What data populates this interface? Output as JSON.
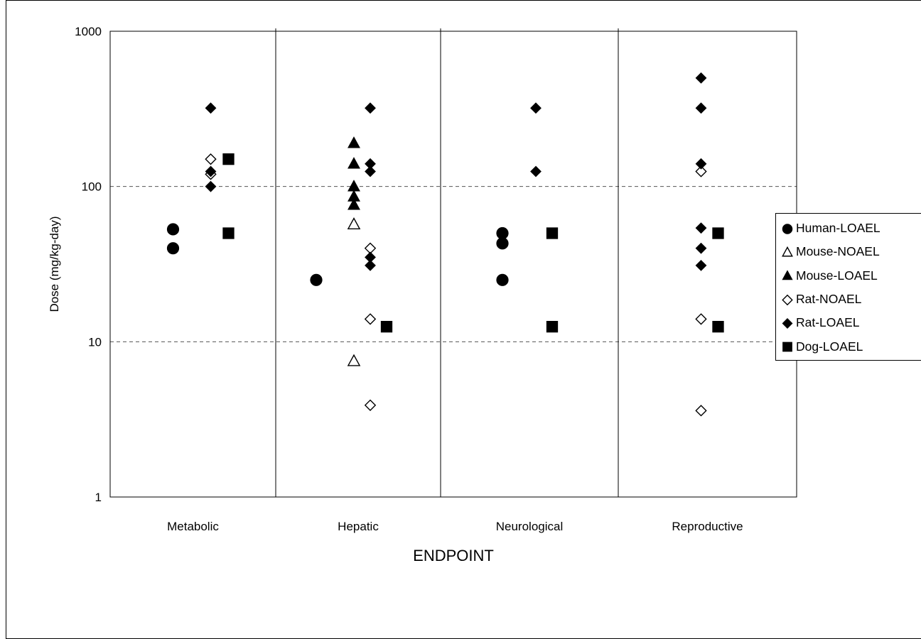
{
  "chart_data": {
    "type": "scatter",
    "title": "",
    "xlabel": "ENDPOINT",
    "ylabel": "Dose (mg/kg-day)",
    "y_scale": "log",
    "ylim": [
      1,
      1000
    ],
    "y_ticks": [
      "1",
      "10",
      "100",
      "1000"
    ],
    "categories": [
      "Metabolic",
      "Hepatic",
      "Neurological",
      "Reproductive"
    ],
    "grid": "horizontal dashed",
    "legend_position": "right",
    "series": [
      {
        "name": "Human-LOAEL",
        "marker": "circle-filled",
        "points": [
          {
            "category": "Metabolic",
            "y": 53
          },
          {
            "category": "Metabolic",
            "y": 40
          },
          {
            "category": "Hepatic",
            "y": 25
          },
          {
            "category": "Neurological",
            "y": 50
          },
          {
            "category": "Neurological",
            "y": 43
          },
          {
            "category": "Neurological",
            "y": 25
          }
        ]
      },
      {
        "name": "Mouse-NOAEL",
        "marker": "triangle-open",
        "points": [
          {
            "category": "Hepatic",
            "y": 57
          },
          {
            "category": "Hepatic",
            "y": 7.5
          }
        ]
      },
      {
        "name": "Mouse-LOAEL",
        "marker": "triangle-filled",
        "points": [
          {
            "category": "Hepatic",
            "y": 190
          },
          {
            "category": "Hepatic",
            "y": 140
          },
          {
            "category": "Hepatic",
            "y": 100
          },
          {
            "category": "Hepatic",
            "y": 86
          },
          {
            "category": "Hepatic",
            "y": 76
          }
        ]
      },
      {
        "name": "Rat-NOAEL",
        "marker": "diamond-open",
        "points": [
          {
            "category": "Metabolic",
            "y": 150
          },
          {
            "category": "Metabolic",
            "y": 120
          },
          {
            "category": "Hepatic",
            "y": 40
          },
          {
            "category": "Hepatic",
            "y": 14
          },
          {
            "category": "Hepatic",
            "y": 3.9
          },
          {
            "category": "Reproductive",
            "y": 125
          },
          {
            "category": "Reproductive",
            "y": 14
          },
          {
            "category": "Reproductive",
            "y": 3.6
          }
        ]
      },
      {
        "name": "Rat-LOAEL",
        "marker": "diamond-filled",
        "points": [
          {
            "category": "Metabolic",
            "y": 320
          },
          {
            "category": "Metabolic",
            "y": 125
          },
          {
            "category": "Metabolic",
            "y": 100
          },
          {
            "category": "Hepatic",
            "y": 320
          },
          {
            "category": "Hepatic",
            "y": 140
          },
          {
            "category": "Hepatic",
            "y": 125
          },
          {
            "category": "Hepatic",
            "y": 35
          },
          {
            "category": "Hepatic",
            "y": 31
          },
          {
            "category": "Neurological",
            "y": 320
          },
          {
            "category": "Neurological",
            "y": 125
          },
          {
            "category": "Reproductive",
            "y": 500
          },
          {
            "category": "Reproductive",
            "y": 320
          },
          {
            "category": "Reproductive",
            "y": 140
          },
          {
            "category": "Reproductive",
            "y": 54
          },
          {
            "category": "Reproductive",
            "y": 40
          },
          {
            "category": "Reproductive",
            "y": 31
          }
        ]
      },
      {
        "name": "Dog-LOAEL",
        "marker": "square-filled",
        "points": [
          {
            "category": "Metabolic",
            "y": 150
          },
          {
            "category": "Metabolic",
            "y": 50
          },
          {
            "category": "Hepatic",
            "y": 12.5
          },
          {
            "category": "Neurological",
            "y": 50
          },
          {
            "category": "Neurological",
            "y": 12.5
          },
          {
            "category": "Reproductive",
            "y": 50
          },
          {
            "category": "Reproductive",
            "y": 12.5
          }
        ]
      }
    ]
  }
}
